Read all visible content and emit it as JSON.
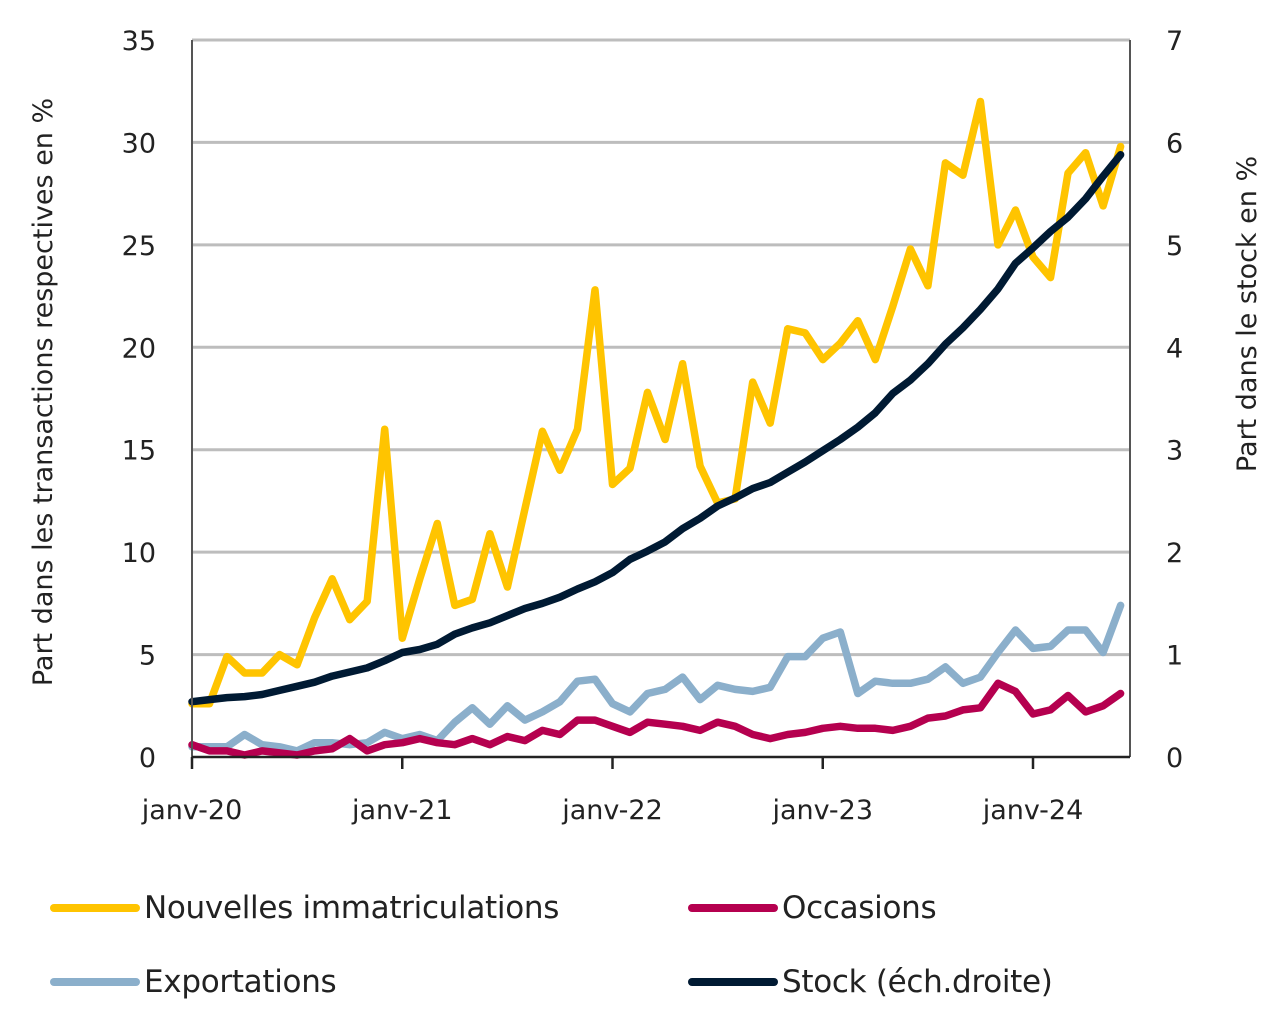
{
  "chart_data": {
    "type": "line",
    "title": "",
    "x": [
      "janv-20",
      "févr-20",
      "mars-20",
      "avr-20",
      "mai-20",
      "juin-20",
      "juil-20",
      "août-20",
      "sept-20",
      "oct-20",
      "nov-20",
      "déc-20",
      "janv-21",
      "févr-21",
      "mars-21",
      "avr-21",
      "mai-21",
      "juin-21",
      "juil-21",
      "août-21",
      "sept-21",
      "oct-21",
      "nov-21",
      "déc-21",
      "janv-22",
      "févr-22",
      "mars-22",
      "avr-22",
      "mai-22",
      "juin-22",
      "juil-22",
      "août-22",
      "sept-22",
      "oct-22",
      "nov-22",
      "déc-22",
      "janv-23",
      "févr-23",
      "mars-23",
      "avr-23",
      "mai-23",
      "juin-23",
      "juil-23",
      "août-23",
      "sept-23",
      "oct-23",
      "nov-23",
      "déc-23",
      "janv-24",
      "févr-24",
      "mars-24",
      "avr-24",
      "mai-24",
      "juin-24"
    ],
    "xticks": [
      "janv-20",
      "janv-21",
      "janv-22",
      "janv-23",
      "janv-24"
    ],
    "ylabel": "Part dans les transactions respectives en %",
    "y2label": "Part dans le stock en %",
    "ylim": [
      0,
      35
    ],
    "y2lim": [
      0,
      7
    ],
    "yticks": [
      0,
      5,
      10,
      15,
      20,
      25,
      30,
      35
    ],
    "y2ticks": [
      0,
      1,
      2,
      3,
      4,
      5,
      6,
      7
    ],
    "grid": true,
    "legend_position": "bottom",
    "series": [
      {
        "name": "Nouvelles immatriculations",
        "axis": "left",
        "color": "#FFC400",
        "values": [
          2.6,
          2.6,
          4.9,
          4.1,
          4.1,
          5.0,
          4.5,
          6.8,
          8.7,
          6.7,
          7.6,
          16.0,
          5.8,
          8.7,
          11.4,
          7.4,
          7.7,
          10.9,
          8.3,
          12.1,
          15.9,
          14.0,
          16.0,
          22.8,
          13.3,
          14.1,
          17.8,
          15.5,
          19.2,
          14.2,
          12.4,
          12.6,
          18.3,
          16.3,
          20.9,
          20.7,
          19.4,
          20.2,
          21.3,
          19.4,
          22.0,
          24.8,
          23.0,
          29.0,
          28.4,
          32.0,
          25.0,
          26.7,
          24.4,
          23.4,
          28.5,
          29.5,
          26.9,
          29.8
        ]
      },
      {
        "name": "Occasions",
        "axis": "left",
        "color": "#B5004F",
        "values": [
          0.6,
          0.3,
          0.3,
          0.1,
          0.3,
          0.2,
          0.1,
          0.3,
          0.4,
          0.9,
          0.3,
          0.6,
          0.7,
          0.9,
          0.7,
          0.6,
          0.9,
          0.6,
          1.0,
          0.8,
          1.3,
          1.1,
          1.8,
          1.8,
          1.5,
          1.2,
          1.7,
          1.6,
          1.5,
          1.3,
          1.7,
          1.5,
          1.1,
          0.9,
          1.1,
          1.2,
          1.4,
          1.5,
          1.4,
          1.4,
          1.3,
          1.5,
          1.9,
          2.0,
          2.3,
          2.4,
          3.6,
          3.2,
          2.1,
          2.3,
          3.0,
          2.2,
          2.5,
          3.1
        ]
      },
      {
        "name": "Exportations",
        "axis": "left",
        "color": "#8BAFCB",
        "values": [
          0.5,
          0.5,
          0.5,
          1.1,
          0.6,
          0.5,
          0.3,
          0.7,
          0.7,
          0.6,
          0.7,
          1.2,
          0.9,
          1.1,
          0.8,
          1.7,
          2.4,
          1.6,
          2.5,
          1.8,
          2.2,
          2.7,
          3.7,
          3.8,
          2.6,
          2.2,
          3.1,
          3.3,
          3.9,
          2.8,
          3.5,
          3.3,
          3.2,
          3.4,
          4.9,
          4.9,
          5.8,
          6.1,
          3.1,
          3.7,
          3.6,
          3.6,
          3.8,
          4.4,
          3.6,
          3.9,
          5.1,
          6.2,
          5.3,
          5.4,
          6.2,
          6.2,
          5.1,
          7.4
        ]
      },
      {
        "name": "Stock (éch.droite)",
        "axis": "right",
        "color": "#001A33",
        "values": [
          0.54,
          0.56,
          0.58,
          0.59,
          0.61,
          0.65,
          0.69,
          0.73,
          0.79,
          0.83,
          0.87,
          0.94,
          1.02,
          1.05,
          1.1,
          1.2,
          1.26,
          1.31,
          1.38,
          1.45,
          1.5,
          1.56,
          1.64,
          1.71,
          1.8,
          1.93,
          2.01,
          2.1,
          2.23,
          2.33,
          2.45,
          2.53,
          2.62,
          2.68,
          2.78,
          2.88,
          2.99,
          3.1,
          3.22,
          3.36,
          3.55,
          3.68,
          3.84,
          4.03,
          4.19,
          4.37,
          4.57,
          4.82,
          4.97,
          5.13,
          5.27,
          5.45,
          5.67,
          5.88
        ]
      }
    ]
  },
  "legend": [
    {
      "label": "Nouvelles immatriculations",
      "color": "#FFC400"
    },
    {
      "label": "Occasions",
      "color": "#B5004F"
    },
    {
      "label": "Exportations",
      "color": "#8BAFCB"
    },
    {
      "label": "Stock (éch.droite)",
      "color": "#001A33"
    }
  ]
}
